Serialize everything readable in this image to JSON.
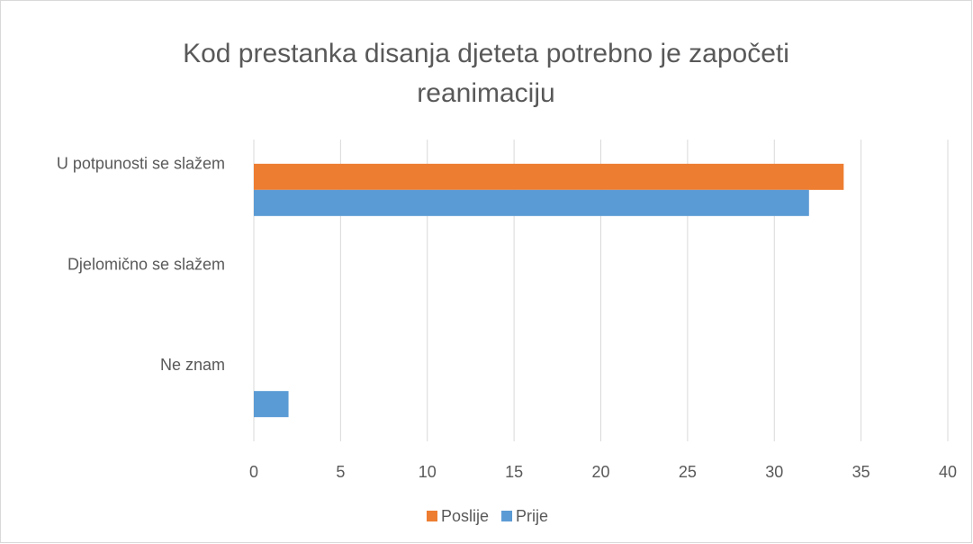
{
  "chart_data": {
    "type": "bar",
    "orientation": "horizontal",
    "title": "Kod prestanka disanja djeteta potrebno je započeti reanimaciju",
    "categories": [
      "U potpunosti se slažem",
      "Djelomično se slažem",
      "Ne znam"
    ],
    "series": [
      {
        "name": "Poslije",
        "color": "#ed7d31",
        "values": [
          34,
          0,
          0
        ]
      },
      {
        "name": "Prije",
        "color": "#5b9bd5",
        "values": [
          32,
          0,
          2
        ]
      }
    ],
    "xlim": [
      0,
      40
    ],
    "xticks": [
      0,
      5,
      10,
      15,
      20,
      25,
      30,
      35,
      40
    ],
    "grid": true,
    "legend": "bottom"
  }
}
